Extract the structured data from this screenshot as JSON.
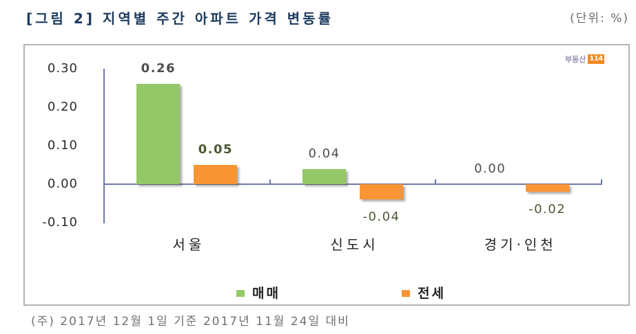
{
  "header": {
    "title": "[그림 2] 지역별 주간 아파트 가격 변동률",
    "unit": "(단위: %)"
  },
  "logo": {
    "text": "부동산",
    "badge": "114"
  },
  "footnote": "(주) 2017년 12월 1일 기준 2017년 11월 24일 대비",
  "colors": {
    "title": "#1c3a5e",
    "axis": "#6c77a6",
    "sale": "#94c767",
    "jeonse": "#fa9535",
    "logo_badge": "#f08a24"
  },
  "chart_data": {
    "type": "bar",
    "title": "[그림 2] 지역별 주간 아파트 가격 변동률",
    "unit": "%",
    "xlabel": "",
    "ylabel": "",
    "categories": [
      "서울",
      "신도시",
      "경기·인천"
    ],
    "series": [
      {
        "name": "매매",
        "color": "#94c767",
        "values": [
          0.26,
          0.04,
          0.0
        ],
        "labels": [
          "0.26",
          "0.04",
          "0.00"
        ]
      },
      {
        "name": "전세",
        "color": "#fa9535",
        "values": [
          0.05,
          -0.04,
          -0.02
        ],
        "labels": [
          "0.05",
          "-0.04",
          "-0.02"
        ]
      }
    ],
    "yticks": [
      {
        "value": 0.3,
        "label": "0.30"
      },
      {
        "value": 0.2,
        "label": "0.20"
      },
      {
        "value": 0.1,
        "label": "0.10"
      },
      {
        "value": 0.0,
        "label": "0.00"
      },
      {
        "value": -0.1,
        "label": "-0.10"
      }
    ],
    "ylim": [
      -0.1,
      0.3
    ],
    "grid": false,
    "legend": {
      "position": "bottom",
      "entries": [
        "매매",
        "전세"
      ]
    }
  }
}
